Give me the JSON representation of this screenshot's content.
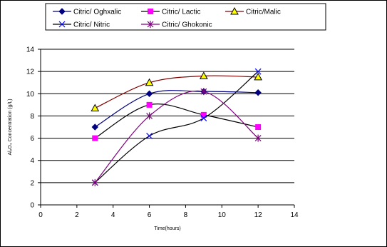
{
  "chart_data": {
    "type": "line",
    "title": "",
    "xlabel": "Time(hours)",
    "ylabel": "Al₂O₃ Concentration (g/L)",
    "xlim": [
      0,
      14
    ],
    "ylim": [
      0,
      14
    ],
    "x_ticks": [
      0,
      2,
      4,
      6,
      8,
      10,
      12,
      14
    ],
    "y_ticks": [
      0,
      2,
      4,
      6,
      8,
      10,
      12,
      14
    ],
    "grid": "horizontal major gridlines",
    "legend_position": "top, outside plot area",
    "series": [
      {
        "name": "Citric/ Oghxalic",
        "color": "#000080",
        "marker": "diamond",
        "x": [
          3,
          6,
          9,
          12
        ],
        "y": [
          7.0,
          10.0,
          10.2,
          10.1
        ]
      },
      {
        "name": "Citric/ Lactic",
        "color": "#FF00FF",
        "line_color": "#000000",
        "marker": "square",
        "x": [
          3,
          6,
          9,
          12
        ],
        "y": [
          6.0,
          9.0,
          8.1,
          7.0
        ]
      },
      {
        "name": "Citric/Malic",
        "color": "#FFFF00",
        "line_color": "#800000",
        "marker": "triangle",
        "x": [
          3,
          6,
          9,
          12
        ],
        "y": [
          8.7,
          11.0,
          11.6,
          11.5
        ]
      },
      {
        "name": "Citric/ Nitric",
        "color": "#0000FF",
        "line_color": "#000000",
        "marker": "x",
        "x": [
          3,
          6,
          9,
          12
        ],
        "y": [
          2.0,
          6.2,
          7.8,
          12.0
        ]
      },
      {
        "name": "Citric/ Ghokonic",
        "color": "#800080",
        "line_color": "#800080",
        "marker": "star",
        "x": [
          3,
          6,
          9,
          12
        ],
        "y": [
          2.0,
          8.0,
          10.2,
          6.0
        ]
      }
    ]
  }
}
